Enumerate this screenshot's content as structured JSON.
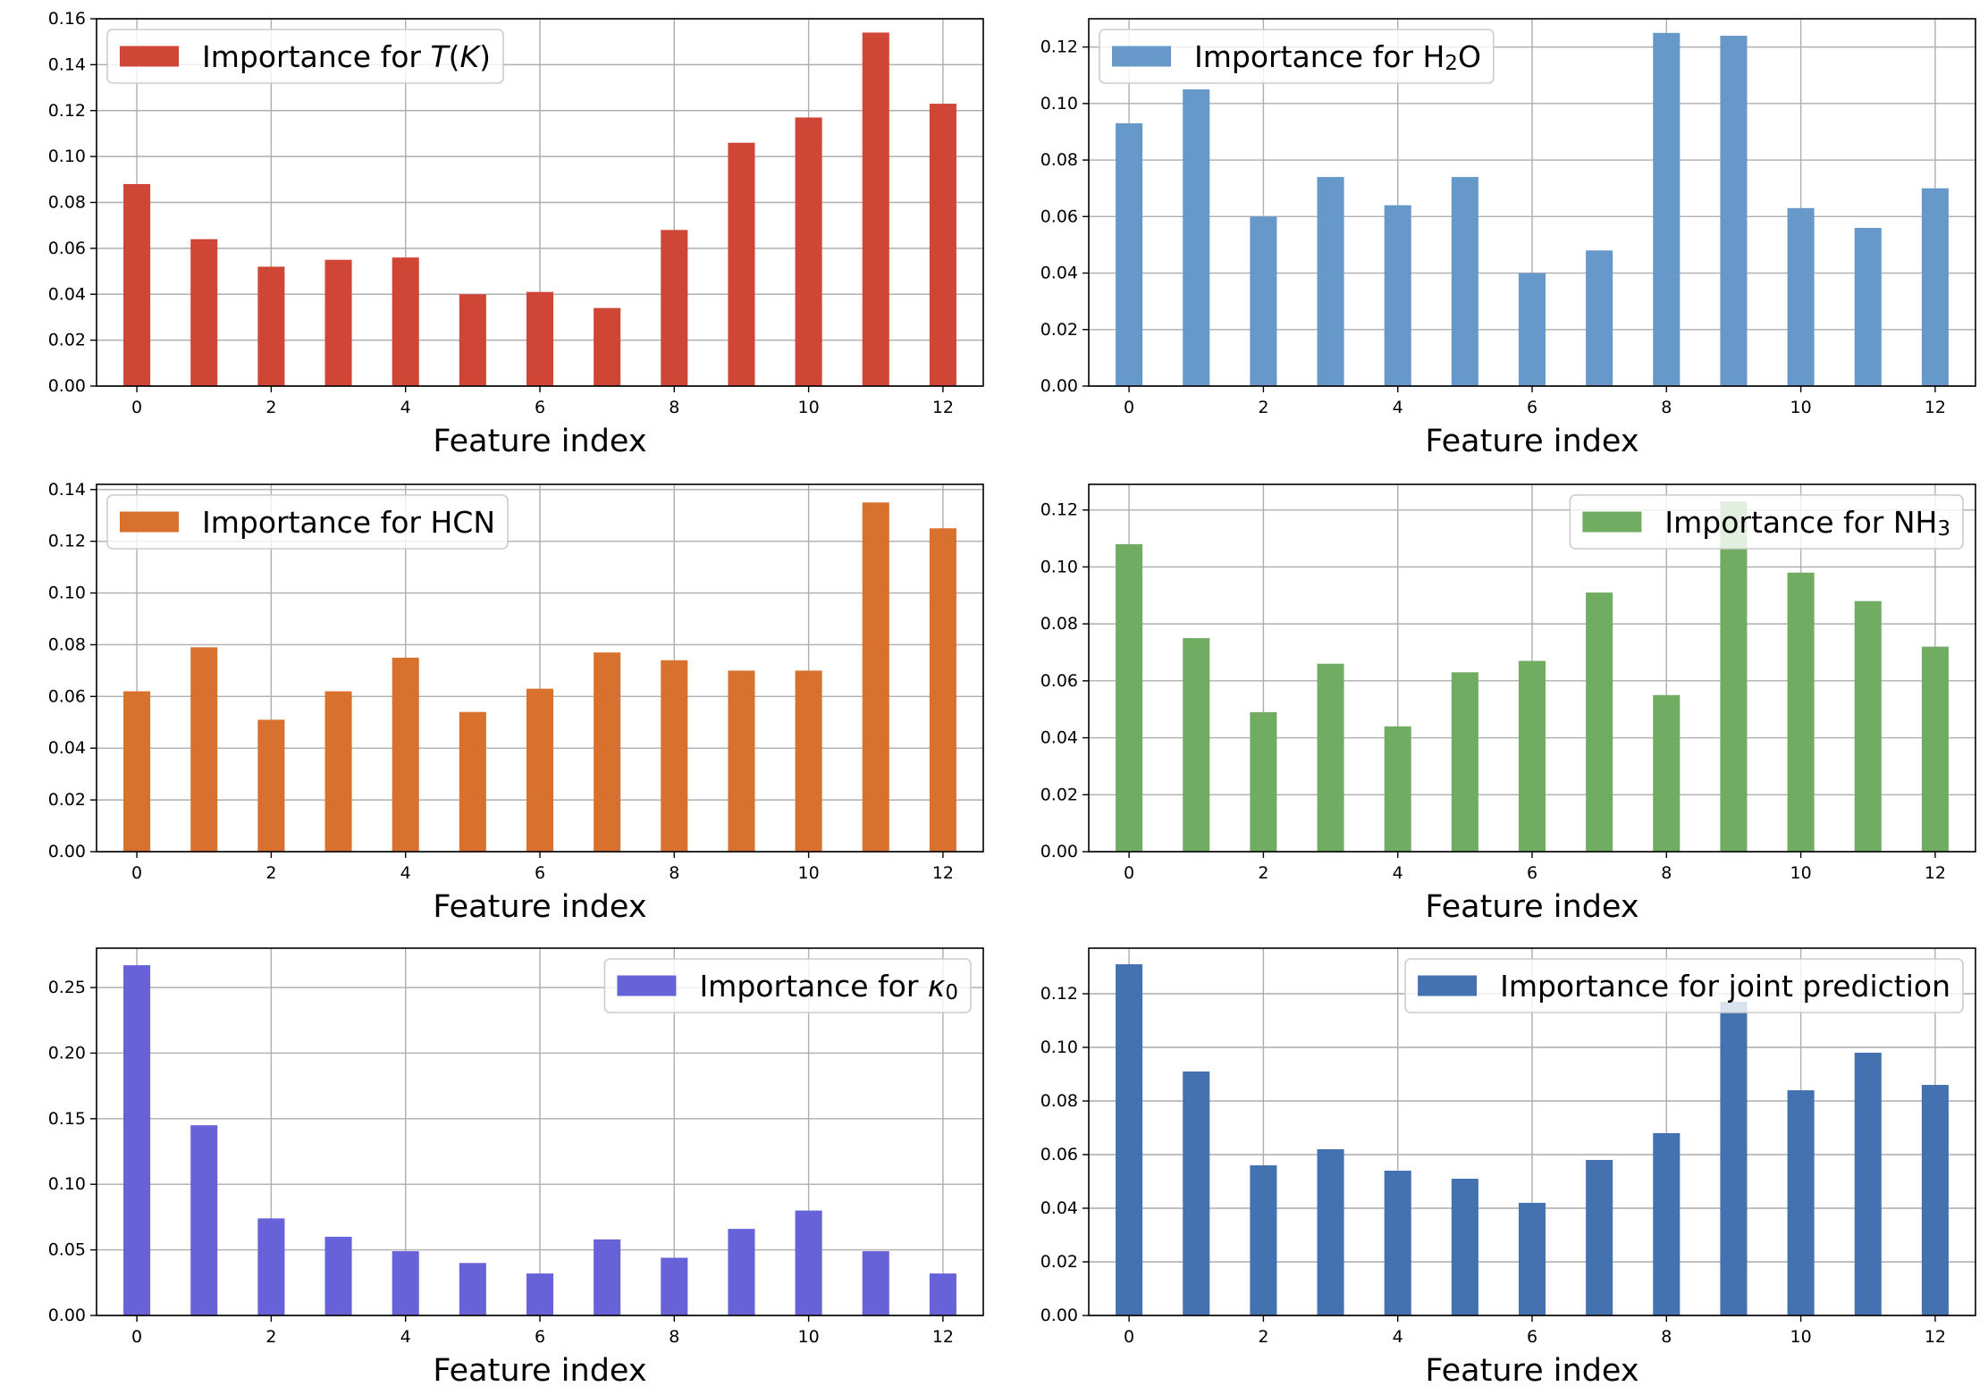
{
  "chart_data": [
    {
      "type": "bar",
      "x": [
        0,
        1,
        2,
        3,
        4,
        5,
        6,
        7,
        8,
        9,
        10,
        11,
        12
      ],
      "values": [
        0.088,
        0.064,
        0.052,
        0.055,
        0.056,
        0.04,
        0.041,
        0.034,
        0.068,
        0.106,
        0.117,
        0.154,
        0.123
      ],
      "series_name": "Importance for T(K)",
      "legend": {
        "prefix": "Importance for ",
        "math": "T(K)",
        "placement": "upper left"
      },
      "color": "#d04636",
      "xlabel": "Feature index",
      "ylim": [
        0,
        0.16
      ],
      "yticks": [
        0.0,
        0.02,
        0.04,
        0.06,
        0.08,
        0.1,
        0.12,
        0.14,
        0.16
      ],
      "ytick_labels": [
        "0.00",
        "0.02",
        "0.04",
        "0.06",
        "0.08",
        "0.10",
        "0.12",
        "0.14",
        "0.16"
      ],
      "xticks": [
        0,
        2,
        4,
        6,
        8,
        10,
        12
      ],
      "xtick_labels": [
        "0",
        "2",
        "4",
        "6",
        "8",
        "10",
        "12"
      ],
      "grid": true
    },
    {
      "type": "bar",
      "x": [
        0,
        1,
        2,
        3,
        4,
        5,
        6,
        7,
        8,
        9,
        10,
        11,
        12
      ],
      "values": [
        0.093,
        0.105,
        0.06,
        0.074,
        0.064,
        0.074,
        0.04,
        0.048,
        0.125,
        0.124,
        0.063,
        0.056,
        0.07
      ],
      "series_name": "Importance for H2O",
      "legend": {
        "prefix": "Importance for ",
        "chem": [
          "H",
          "2",
          "O"
        ],
        "placement": "upper left"
      },
      "color": "#6699c9",
      "xlabel": "Feature index",
      "ylim": [
        0,
        0.13
      ],
      "yticks": [
        0.0,
        0.02,
        0.04,
        0.06,
        0.08,
        0.1,
        0.12
      ],
      "ytick_labels": [
        "0.00",
        "0.02",
        "0.04",
        "0.06",
        "0.08",
        "0.10",
        "0.12"
      ],
      "xticks": [
        0,
        2,
        4,
        6,
        8,
        10,
        12
      ],
      "xtick_labels": [
        "0",
        "2",
        "4",
        "6",
        "8",
        "10",
        "12"
      ],
      "grid": true
    },
    {
      "type": "bar",
      "x": [
        0,
        1,
        2,
        3,
        4,
        5,
        6,
        7,
        8,
        9,
        10,
        11,
        12
      ],
      "values": [
        0.062,
        0.079,
        0.051,
        0.062,
        0.075,
        0.054,
        0.063,
        0.077,
        0.074,
        0.07,
        0.07,
        0.135,
        0.125
      ],
      "series_name": "Importance for HCN",
      "legend": {
        "prefix": "Importance for ",
        "text": "HCN",
        "placement": "upper left"
      },
      "color": "#d9712e",
      "xlabel": "Feature index",
      "ylim": [
        0,
        0.142
      ],
      "yticks": [
        0.0,
        0.02,
        0.04,
        0.06,
        0.08,
        0.1,
        0.12,
        0.14
      ],
      "ytick_labels": [
        "0.00",
        "0.02",
        "0.04",
        "0.06",
        "0.08",
        "0.10",
        "0.12",
        "0.14"
      ],
      "xticks": [
        0,
        2,
        4,
        6,
        8,
        10,
        12
      ],
      "xtick_labels": [
        "0",
        "2",
        "4",
        "6",
        "8",
        "10",
        "12"
      ],
      "grid": true
    },
    {
      "type": "bar",
      "x": [
        0,
        1,
        2,
        3,
        4,
        5,
        6,
        7,
        8,
        9,
        10,
        11,
        12
      ],
      "values": [
        0.108,
        0.075,
        0.049,
        0.066,
        0.044,
        0.063,
        0.067,
        0.091,
        0.055,
        0.123,
        0.098,
        0.088,
        0.072
      ],
      "series_name": "Importance for NH3",
      "legend": {
        "prefix": "Importance for ",
        "chem": [
          "NH",
          "3",
          ""
        ],
        "placement": "upper right"
      },
      "color": "#70ad62",
      "xlabel": "Feature index",
      "ylim": [
        0,
        0.129
      ],
      "yticks": [
        0.0,
        0.02,
        0.04,
        0.06,
        0.08,
        0.1,
        0.12
      ],
      "ytick_labels": [
        "0.00",
        "0.02",
        "0.04",
        "0.06",
        "0.08",
        "0.10",
        "0.12"
      ],
      "xticks": [
        0,
        2,
        4,
        6,
        8,
        10,
        12
      ],
      "xtick_labels": [
        "0",
        "2",
        "4",
        "6",
        "8",
        "10",
        "12"
      ],
      "grid": true
    },
    {
      "type": "bar",
      "x": [
        0,
        1,
        2,
        3,
        4,
        5,
        6,
        7,
        8,
        9,
        10,
        11,
        12
      ],
      "values": [
        0.267,
        0.145,
        0.074,
        0.06,
        0.049,
        0.04,
        0.032,
        0.058,
        0.044,
        0.066,
        0.08,
        0.049,
        0.032
      ],
      "series_name": "Importance for κ0",
      "legend": {
        "prefix": "Importance for ",
        "kappa": [
          "κ",
          "0"
        ],
        "placement": "upper right"
      },
      "color": "#6762d8",
      "xlabel": "Feature index",
      "ylim": [
        0,
        0.28
      ],
      "yticks": [
        0.0,
        0.05,
        0.1,
        0.15,
        0.2,
        0.25
      ],
      "ytick_labels": [
        "0.00",
        "0.05",
        "0.10",
        "0.15",
        "0.20",
        "0.25"
      ],
      "xticks": [
        0,
        2,
        4,
        6,
        8,
        10,
        12
      ],
      "xtick_labels": [
        "0",
        "2",
        "4",
        "6",
        "8",
        "10",
        "12"
      ],
      "grid": true
    },
    {
      "type": "bar",
      "x": [
        0,
        1,
        2,
        3,
        4,
        5,
        6,
        7,
        8,
        9,
        10,
        11,
        12
      ],
      "values": [
        0.131,
        0.091,
        0.056,
        0.062,
        0.054,
        0.051,
        0.042,
        0.058,
        0.068,
        0.117,
        0.084,
        0.098,
        0.086
      ],
      "series_name": "Importance for joint prediction",
      "legend": {
        "prefix": "Importance for ",
        "text": "joint prediction",
        "placement": "upper right"
      },
      "color": "#4472b0",
      "xlabel": "Feature index",
      "ylim": [
        0,
        0.137
      ],
      "yticks": [
        0.0,
        0.02,
        0.04,
        0.06,
        0.08,
        0.1,
        0.12
      ],
      "ytick_labels": [
        "0.00",
        "0.02",
        "0.04",
        "0.06",
        "0.08",
        "0.10",
        "0.12"
      ],
      "xticks": [
        0,
        2,
        4,
        6,
        8,
        10,
        12
      ],
      "xtick_labels": [
        "0",
        "2",
        "4",
        "6",
        "8",
        "10",
        "12"
      ],
      "grid": true
    }
  ]
}
